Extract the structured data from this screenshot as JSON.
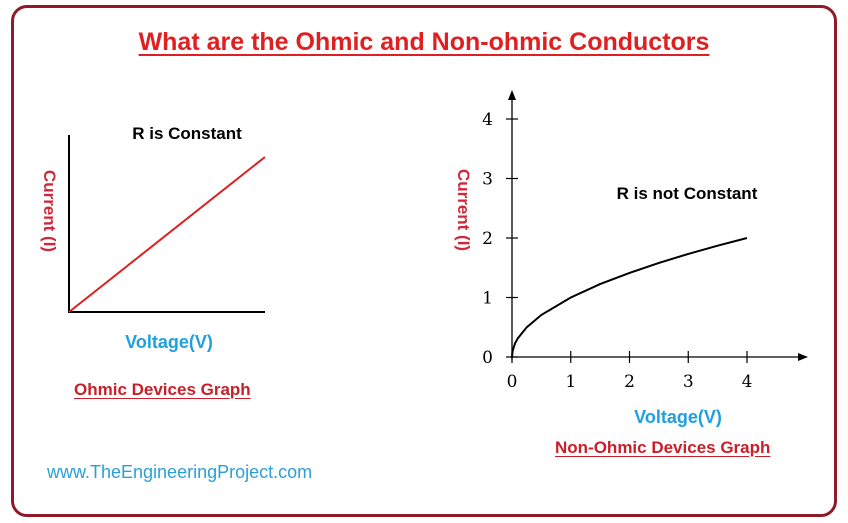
{
  "title": "What are the Ohmic and Non-ohmic Conductors",
  "website": "www.TheEngineeringProject.com",
  "colors": {
    "frame": "#8e1b2a",
    "title": "#e02020",
    "ylabel": "#d0283a",
    "xlabel": "#1fa0dd",
    "caption": "#c8202b",
    "ohmic_line": "#dd1f1f",
    "nonohmic_curve": "#000000"
  },
  "chart_data": [
    {
      "type": "line",
      "caption": "Ohmic Devices Graph",
      "annotation": "R is Constant",
      "xlabel": "Voltage(V)",
      "ylabel": "Current (I)",
      "ticks_shown": false,
      "series": [
        {
          "x": [
            0,
            1
          ],
          "y": [
            0,
            1
          ]
        }
      ]
    },
    {
      "type": "line",
      "caption": "Non-Ohmic Devices Graph",
      "annotation": "R is not Constant",
      "xlabel": "Voltage(V)",
      "ylabel": "Current (I)",
      "xlim": [
        0,
        5
      ],
      "ylim": [
        0,
        4.5
      ],
      "xticks": [
        "0",
        "1",
        "2",
        "3",
        "4"
      ],
      "yticks": [
        "0",
        "1",
        "2",
        "3",
        "4"
      ],
      "series": [
        {
          "x": [
            0,
            0.01,
            0.05,
            0.1,
            0.25,
            0.5,
            1,
            1.5,
            2,
            2.5,
            3,
            3.5,
            4
          ],
          "y": [
            0,
            0.1,
            0.224,
            0.316,
            0.5,
            0.707,
            1,
            1.225,
            1.414,
            1.581,
            1.732,
            1.871,
            2
          ]
        }
      ]
    }
  ]
}
